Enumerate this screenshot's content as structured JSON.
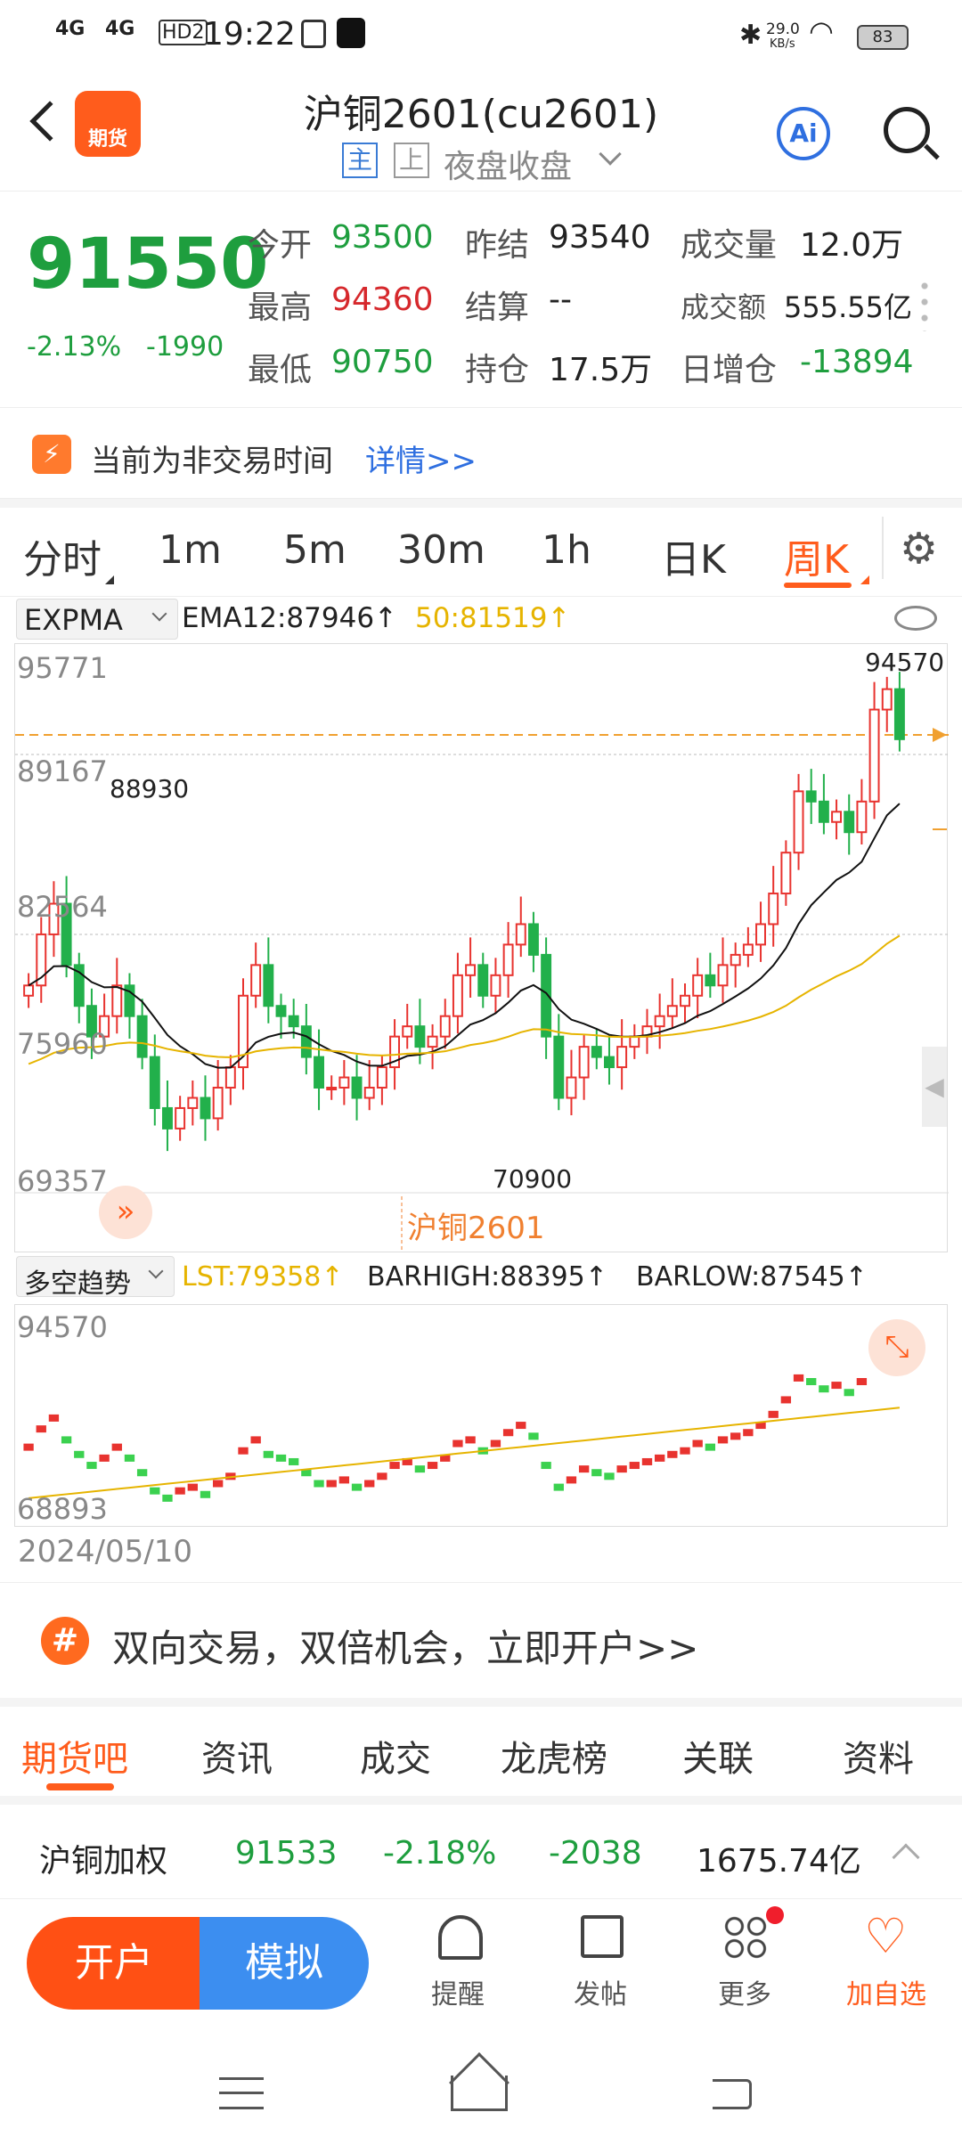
{
  "status": {
    "net1": "4G",
    "net2": "4G",
    "hd": "HD2",
    "time": "19:22",
    "speed": "29.0",
    "speed_unit": "KB/s",
    "battery": "83"
  },
  "header": {
    "logo": "期货",
    "title": "沪铜2601(cu2601)",
    "tag_main": "主",
    "tag_up": "上",
    "session": "夜盘收盘",
    "ai": "Ai"
  },
  "quote": {
    "price": "91550",
    "pct": "-2.13%",
    "chg": "-1990",
    "open_l": "今开",
    "open_v": "93500",
    "prev_l": "昨结",
    "prev_v": "93540",
    "vol_l": "成交量",
    "vol_v": "12.0万",
    "high_l": "最高",
    "high_v": "94360",
    "settle_l": "结算",
    "settle_v": "--",
    "amt_l": "成交额",
    "amt_v": "555.55亿",
    "low_l": "最低",
    "low_v": "90750",
    "oi_l": "持仓",
    "oi_v": "17.5万",
    "dinc_l": "日增仓",
    "dinc_v": "-13894"
  },
  "notice": {
    "text": "当前为非交易时间",
    "link": "详情>>"
  },
  "periods": [
    "分时",
    "1m",
    "5m",
    "30m",
    "1h",
    "日K",
    "周K"
  ],
  "indicator": {
    "name": "EXPMA",
    "ema12": "EMA12:87946↑",
    "ema50": "50:81519↑"
  },
  "kchart": {
    "y_labels": [
      "95771",
      "89167",
      "82564",
      "75960",
      "69357"
    ],
    "high_label": "94570",
    "mark1": "88930",
    "low_label": "70900",
    "watermark": "沪铜2601"
  },
  "indicator2": {
    "name": "多空趋势",
    "lst": "LST:79358↑",
    "barhigh": "BARHIGH:88395↑",
    "barlow": "BARLOW:87545↑"
  },
  "subchart": {
    "top": "94570",
    "bottom": "68893",
    "date": "2024/05/10"
  },
  "promo": {
    "icon": "#",
    "text": "双向交易，双倍机会，立即开户>>"
  },
  "bottom_tabs": [
    "期货吧",
    "资讯",
    "成交",
    "龙虎榜",
    "关联",
    "资料"
  ],
  "weighted": {
    "name": "沪铜加权",
    "price": "91533",
    "pct": "-2.18%",
    "chg": "-2038",
    "amt": "1675.74亿"
  },
  "actions": {
    "open": "开户",
    "sim": "模拟",
    "remind": "提醒",
    "post": "发帖",
    "more": "更多",
    "fav": "加自选"
  },
  "chart_data": {
    "type": "candlestick",
    "title": "沪铜2601",
    "y_range": [
      69357,
      95771
    ],
    "high": 94570,
    "low": 70900,
    "ema12": 87946,
    "ema50": 81519
  }
}
